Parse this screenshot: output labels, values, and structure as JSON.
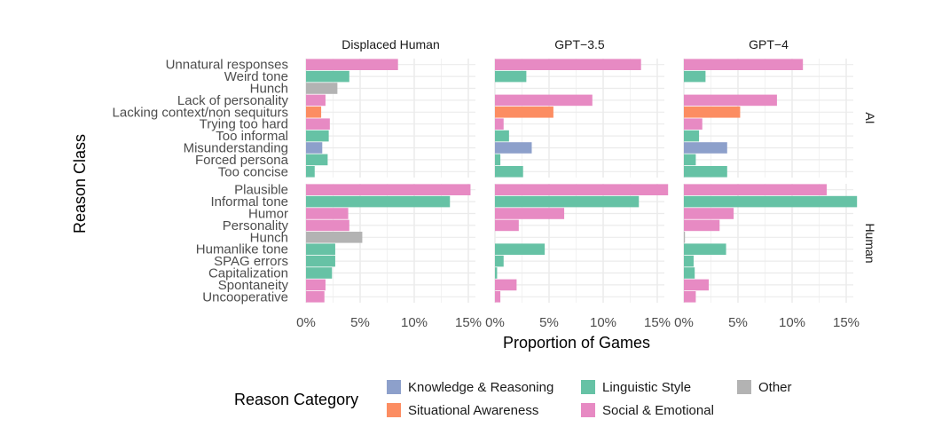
{
  "chart_data": {
    "type": "bar",
    "orientation": "horizontal",
    "xlabel": "Proportion of Games",
    "ylabel": "Reason Class",
    "x_ticks": [
      "0%",
      "5%",
      "10%",
      "15%"
    ],
    "xlim": [
      0,
      16
    ],
    "facets_columns": [
      "Displaced Human",
      "GPT−3.5",
      "GPT−4"
    ],
    "facets_rows": [
      {
        "label": "AI",
        "categories": [
          "Unnatural responses",
          "Weird tone",
          "Hunch",
          "Lack of personality",
          "Lacking context/non sequiturs",
          "Trying too hard",
          "Too informal",
          "Misunderstanding",
          "Forced persona",
          "Too concise"
        ],
        "category_types": [
          "Social & Emotional",
          "Linguistic Style",
          "Other",
          "Social & Emotional",
          "Situational Awareness",
          "Social & Emotional",
          "Linguistic Style",
          "Knowledge & Reasoning",
          "Linguistic Style",
          "Linguistic Style"
        ],
        "values": {
          "Displaced Human": [
            8.5,
            4.0,
            2.9,
            1.8,
            1.4,
            2.2,
            2.1,
            1.5,
            2.0,
            0.8
          ],
          "GPT−3.5": [
            13.5,
            2.9,
            0,
            9.0,
            5.4,
            0.8,
            1.3,
            3.4,
            0.5,
            2.6
          ],
          "GPT−4": [
            11.0,
            2.0,
            0,
            8.6,
            5.2,
            1.7,
            1.4,
            4.0,
            1.1,
            4.0
          ]
        }
      },
      {
        "label": "Human",
        "categories": [
          "Plausible",
          "Informal tone",
          "Humor",
          "Personality",
          "Hunch",
          "Humanlike tone",
          "SPAG errors",
          "Capitalization",
          "Spontaneity",
          "Uncooperative"
        ],
        "category_types": [
          "Social & Emotional",
          "Linguistic Style",
          "Social & Emotional",
          "Social & Emotional",
          "Other",
          "Linguistic Style",
          "Linguistic Style",
          "Linguistic Style",
          "Social & Emotional",
          "Social & Emotional"
        ],
        "values": {
          "Displaced Human": [
            15.2,
            13.3,
            3.9,
            4.0,
            5.2,
            2.7,
            2.7,
            2.4,
            1.8,
            1.7
          ],
          "GPT−3.5": [
            16.0,
            13.3,
            6.4,
            2.2,
            0,
            4.6,
            0.8,
            0.2,
            2.0,
            0.5
          ],
          "GPT−4": [
            13.2,
            16.0,
            4.6,
            3.3,
            0.1,
            3.9,
            0.9,
            1.0,
            2.3,
            1.1
          ]
        }
      }
    ],
    "legend": {
      "title": "Reason Category",
      "entries": [
        "Knowledge & Reasoning",
        "Situational Awareness",
        "Linguistic Style",
        "Social & Emotional",
        "Other"
      ]
    },
    "colors": {
      "Knowledge & Reasoning": "#8da0cb",
      "Situational Awareness": "#fc8d62",
      "Linguistic Style": "#66c2a5",
      "Social & Emotional": "#e78ac3",
      "Other": "#b3b3b3"
    }
  }
}
